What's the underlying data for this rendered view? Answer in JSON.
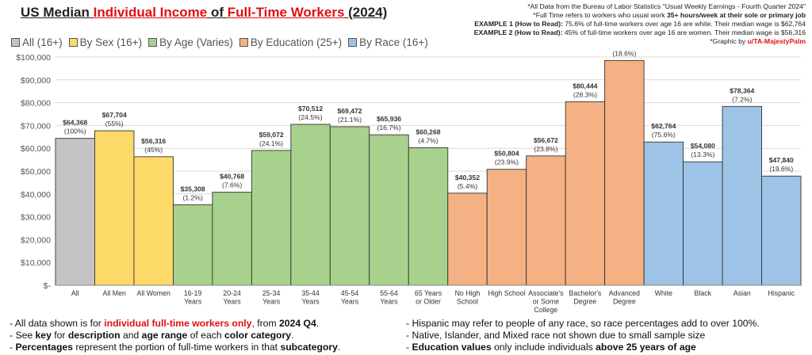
{
  "header": {
    "title_parts": [
      "US Median ",
      "Individual Income",
      " of ",
      "Full-Time Workers",
      " (2024)"
    ]
  },
  "top_notes": {
    "line1": "*All Data from the Bureau of Labor Statistics \"Usual Weekly Earnings - Fourth Quarter 2024\"",
    "line2_a": "*Full Time refers to workers who usual work ",
    "line2_b": "35+ hours/week at their sole or primary job",
    "line3_a": "EXAMPLE 1 (How to Read):",
    "line3_b": " 75.6% of full-time workers over age 16 are white. Their median wage is $62,764",
    "line4_a": "EXAMPLE 2 (How to Read):",
    "line4_b": " 45% of full-time workers over age 16 are women. Their median wage is $56,316",
    "line5_a": "*Graphic by ",
    "line5_b": "u/TA-MajestyPalm"
  },
  "colors": {
    "all": "#c4c4c4",
    "sex": "#fdd967",
    "age": "#a9d18e",
    "education": "#f4b183",
    "race": "#9dc3e6",
    "grid": "#d9d9d9",
    "red": "#e01010"
  },
  "chart_data": {
    "type": "bar",
    "title": "US Median Individual Income of Full-Time Workers (2024)",
    "ylim": [
      0,
      100000
    ],
    "y_ticks": [
      0,
      10000,
      20000,
      30000,
      40000,
      50000,
      60000,
      70000,
      80000,
      90000,
      100000
    ],
    "y_tick_labels": [
      "$-",
      "$10,000",
      "$20,000",
      "$30,000",
      "$40,000",
      "$50,000",
      "$60,000",
      "$70,000",
      "$80,000",
      "$90,000",
      "$100,000"
    ],
    "grid": true,
    "legend_position": "top-left",
    "legend": [
      {
        "label": "All (16+)",
        "group": "all"
      },
      {
        "label": "By Sex (16+)",
        "group": "sex"
      },
      {
        "label": "By Age (Varies)",
        "group": "age"
      },
      {
        "label": "By Education (25+)",
        "group": "education"
      },
      {
        "label": "By Race (16+)",
        "group": "race"
      }
    ],
    "bars": [
      {
        "category": [
          "All"
        ],
        "value": 64368,
        "value_label": "$64,368",
        "pct_label": "(100%)",
        "group": "all"
      },
      {
        "category": [
          "All Men"
        ],
        "value": 67704,
        "value_label": "$67,704",
        "pct_label": "(55%)",
        "group": "sex"
      },
      {
        "category": [
          "All Women"
        ],
        "value": 56316,
        "value_label": "$56,316",
        "pct_label": "(45%)",
        "group": "sex"
      },
      {
        "category": [
          "16-19",
          "Years"
        ],
        "value": 35308,
        "value_label": "$35,308",
        "pct_label": "(1.2%)",
        "group": "age"
      },
      {
        "category": [
          "20-24",
          "Years"
        ],
        "value": 40768,
        "value_label": "$40,768",
        "pct_label": "(7.6%)",
        "group": "age"
      },
      {
        "category": [
          "25-34",
          "Years"
        ],
        "value": 59072,
        "value_label": "$59,072",
        "pct_label": "(24.1%)",
        "group": "age"
      },
      {
        "category": [
          "35-44",
          "Years"
        ],
        "value": 70512,
        "value_label": "$70,512",
        "pct_label": "(24.5%)",
        "group": "age"
      },
      {
        "category": [
          "45-54",
          "Years"
        ],
        "value": 69472,
        "value_label": "$69,472",
        "pct_label": "(21.1%)",
        "group": "age"
      },
      {
        "category": [
          "55-64",
          "Years"
        ],
        "value": 65936,
        "value_label": "$65,936",
        "pct_label": "(16.7%)",
        "group": "age"
      },
      {
        "category": [
          "65 Years",
          "or Older"
        ],
        "value": 60268,
        "value_label": "$60,268",
        "pct_label": "(4.7%)",
        "group": "age"
      },
      {
        "category": [
          "No High",
          "School"
        ],
        "value": 40352,
        "value_label": "$40,352",
        "pct_label": "(5.4%)",
        "group": "education"
      },
      {
        "category": [
          "High School"
        ],
        "value": 50804,
        "value_label": "$50,804",
        "pct_label": "(23.9%)",
        "group": "education"
      },
      {
        "category": [
          "Associate's",
          "or Some",
          "College"
        ],
        "value": 56672,
        "value_label": "$56,672",
        "pct_label": "(23.8%)",
        "group": "education"
      },
      {
        "category": [
          "Bachelor's",
          "Degree"
        ],
        "value": 80444,
        "value_label": "$80,444",
        "pct_label": "(28.3%)",
        "group": "education"
      },
      {
        "category": [
          "Advanced",
          "Degree"
        ],
        "value": 98488,
        "value_label": "$98,488",
        "pct_label": "(18.6%)",
        "group": "education"
      },
      {
        "category": [
          "White"
        ],
        "value": 62764,
        "value_label": "$62,764",
        "pct_label": "(75.6%)",
        "group": "race"
      },
      {
        "category": [
          "Black"
        ],
        "value": 54080,
        "value_label": "$54,080",
        "pct_label": "(13.3%)",
        "group": "race"
      },
      {
        "category": [
          "Asian"
        ],
        "value": 78364,
        "value_label": "$78,364",
        "pct_label": "(7.2%)",
        "group": "race"
      },
      {
        "category": [
          "Hispanic"
        ],
        "value": 47840,
        "value_label": "$47,840",
        "pct_label": "(19.6%)",
        "group": "race"
      }
    ]
  },
  "bottom_notes": {
    "left": [
      {
        "a": "- All data shown is for ",
        "b": "individual full-time workers only",
        "c": ", from ",
        "d": "2024 Q4",
        "e": "."
      },
      {
        "a": "- See ",
        "b": "key",
        "c": " for ",
        "d": "description",
        "e": " and ",
        "f": "age range",
        "g": " of each ",
        "h": "color category",
        "i": "."
      },
      {
        "a": "- ",
        "b": "Percentages",
        "c": " represent the portion of full-time workers in that ",
        "d": "subcategory",
        "e": "."
      }
    ],
    "right": [
      {
        "a": "- Hispanic may refer to people of any race, so race percentages add to over 100%."
      },
      {
        "a": "- Native, Islander, and Mixed race not shown due to small sample size"
      },
      {
        "a": "- ",
        "b": "Education values",
        "c": " only include individuals ",
        "d": "above 25 years of age"
      }
    ]
  }
}
